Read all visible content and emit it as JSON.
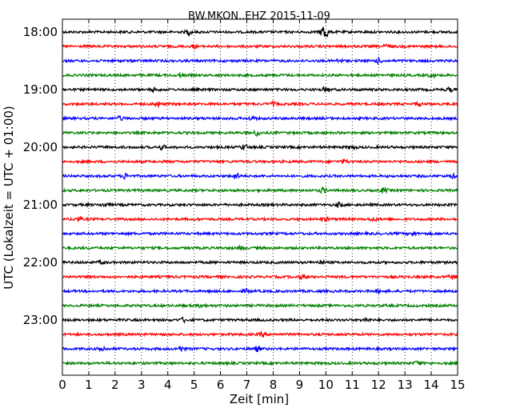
{
  "chart_data": {
    "type": "line",
    "title": "BW.MKON..EHZ 2015-11-09",
    "xlabel": "Zeit  [min]",
    "ylabel": "UTC (Lokalzeit = UTC + 01:00)",
    "xlim": [
      0,
      15
    ],
    "x_ticks": [
      0,
      1,
      2,
      3,
      4,
      5,
      6,
      7,
      8,
      9,
      10,
      11,
      12,
      13,
      14,
      15
    ],
    "x_tick_labels": [
      "0",
      "1",
      "2",
      "3",
      "4",
      "5",
      "6",
      "7",
      "8",
      "9",
      "10",
      "11",
      "12",
      "13",
      "14",
      "15"
    ],
    "y_tick_labels": [
      "18:00",
      "19:00",
      "20:00",
      "21:00",
      "22:00",
      "23:00"
    ],
    "grid": "vertical dotted at each minute",
    "trace_colors": [
      "#000000",
      "#ff0000",
      "#0000ff",
      "#008000"
    ],
    "traces": [
      {
        "start": "18:00",
        "color": "#000000",
        "events": [
          {
            "x": 4.8,
            "amp": 1.6
          },
          {
            "x": 9.95,
            "amp": 7
          }
        ]
      },
      {
        "start": "18:15",
        "color": "#ff0000",
        "events": [
          {
            "x": 5.0,
            "amp": 1.2
          },
          {
            "x": 12.3,
            "amp": 1.3
          }
        ]
      },
      {
        "start": "18:30",
        "color": "#0000ff",
        "events": [
          {
            "x": 10.5,
            "amp": 1.2
          },
          {
            "x": 12.0,
            "amp": 1.6
          }
        ]
      },
      {
        "start": "18:45",
        "color": "#008000",
        "events": [
          {
            "x": 4.5,
            "amp": 1.5
          },
          {
            "x": 14.0,
            "amp": 1.2
          }
        ]
      },
      {
        "start": "19:00",
        "color": "#000000",
        "events": [
          {
            "x": 3.5,
            "amp": 1.2
          },
          {
            "x": 10.0,
            "amp": 1.4
          },
          {
            "x": 14.7,
            "amp": 1.2
          }
        ]
      },
      {
        "start": "19:15",
        "color": "#ff0000",
        "events": [
          {
            "x": 3.6,
            "amp": 1.6
          },
          {
            "x": 8.0,
            "amp": 1.2
          },
          {
            "x": 13.5,
            "amp": 1.3
          }
        ]
      },
      {
        "start": "19:30",
        "color": "#0000ff",
        "events": [
          {
            "x": 2.2,
            "amp": 1.4
          },
          {
            "x": 7.2,
            "amp": 1.4
          }
        ]
      },
      {
        "start": "19:45",
        "color": "#008000",
        "events": [
          {
            "x": 7.4,
            "amp": 2
          }
        ]
      },
      {
        "start": "20:00",
        "color": "#000000",
        "events": [
          {
            "x": 3.8,
            "amp": 1.4
          },
          {
            "x": 6.9,
            "amp": 2
          },
          {
            "x": 11.0,
            "amp": 1.2
          }
        ]
      },
      {
        "start": "20:15",
        "color": "#ff0000",
        "events": [
          {
            "x": 10.7,
            "amp": 1.3
          }
        ]
      },
      {
        "start": "20:30",
        "color": "#0000ff",
        "events": [
          {
            "x": 2.4,
            "amp": 2
          },
          {
            "x": 6.6,
            "amp": 2.2
          },
          {
            "x": 14.8,
            "amp": 1.2
          }
        ]
      },
      {
        "start": "20:45",
        "color": "#008000",
        "events": [
          {
            "x": 9.9,
            "amp": 1.8
          },
          {
            "x": 12.2,
            "amp": 1.8
          }
        ]
      },
      {
        "start": "21:00",
        "color": "#000000",
        "events": [
          {
            "x": 1.6,
            "amp": 1.5
          },
          {
            "x": 10.5,
            "amp": 1.6
          }
        ]
      },
      {
        "start": "21:15",
        "color": "#ff0000",
        "events": [
          {
            "x": 0.6,
            "amp": 1.6
          },
          {
            "x": 10.0,
            "amp": 1.3
          },
          {
            "x": 11.8,
            "amp": 1.3
          }
        ]
      },
      {
        "start": "21:30",
        "color": "#0000ff",
        "events": [
          {
            "x": 13.3,
            "amp": 1.6
          }
        ]
      },
      {
        "start": "21:45",
        "color": "#008000",
        "events": [
          {
            "x": 6.8,
            "amp": 1.2
          }
        ]
      },
      {
        "start": "22:00",
        "color": "#000000",
        "events": [
          {
            "x": 1.5,
            "amp": 1.3
          },
          {
            "x": 9.8,
            "amp": 1.2
          }
        ]
      },
      {
        "start": "22:15",
        "color": "#ff0000",
        "events": [
          {
            "x": 9.1,
            "amp": 1.6
          },
          {
            "x": 14.8,
            "amp": 1.4
          }
        ]
      },
      {
        "start": "22:30",
        "color": "#0000ff",
        "events": [
          {
            "x": 7.0,
            "amp": 1.2
          },
          {
            "x": 12.0,
            "amp": 1.2
          }
        ]
      },
      {
        "start": "22:45",
        "color": "#008000",
        "events": [
          {
            "x": 5.3,
            "amp": 1.2
          }
        ]
      },
      {
        "start": "23:00",
        "color": "#000000",
        "events": [
          {
            "x": 4.6,
            "amp": 1.4
          },
          {
            "x": 11.5,
            "amp": 1.2
          }
        ]
      },
      {
        "start": "23:15",
        "color": "#ff0000",
        "events": [
          {
            "x": 7.6,
            "amp": 1.6
          }
        ]
      },
      {
        "start": "23:30",
        "color": "#0000ff",
        "events": [
          {
            "x": 1.5,
            "amp": 2
          },
          {
            "x": 4.5,
            "amp": 1.6
          },
          {
            "x": 7.4,
            "amp": 1.6
          }
        ]
      },
      {
        "start": "23:45",
        "color": "#008000",
        "events": [
          {
            "x": 13.5,
            "amp": 1.6
          }
        ]
      }
    ]
  }
}
